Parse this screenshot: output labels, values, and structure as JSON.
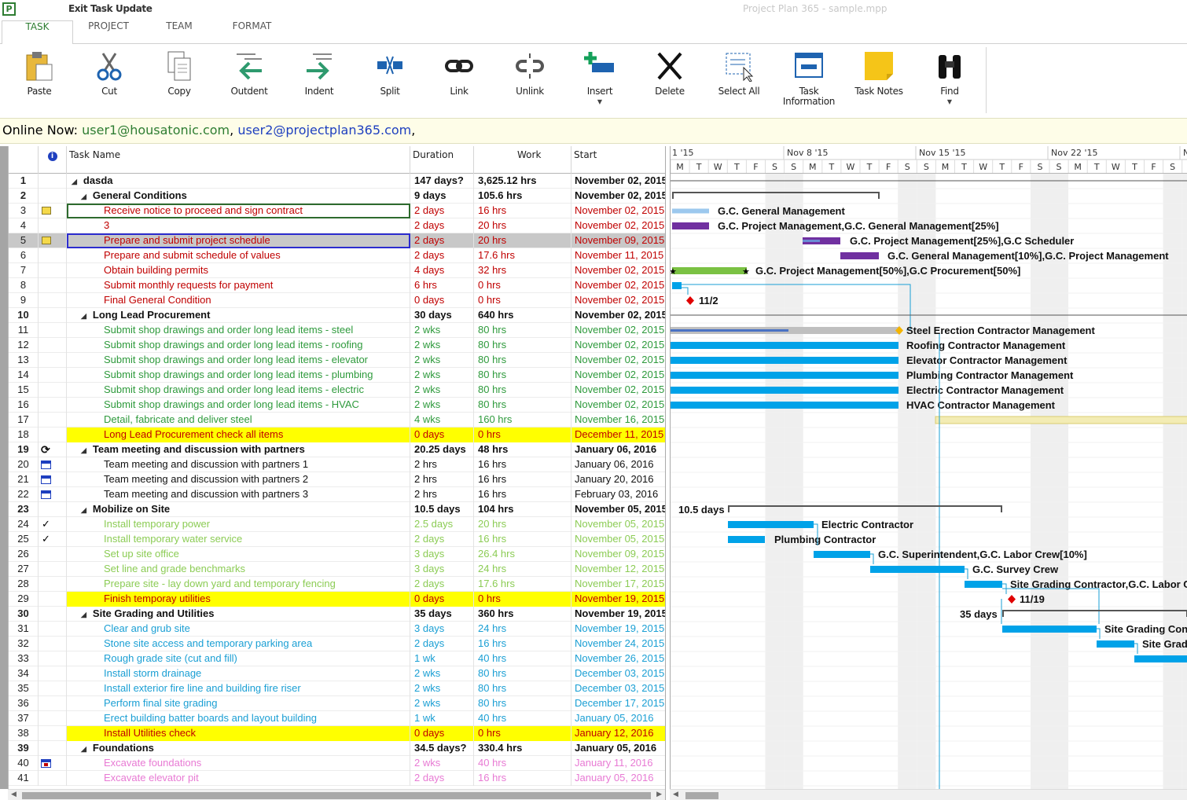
{
  "titlebar": {
    "exit_label": "Exit Task Update",
    "doc_title": "Project Plan 365 - sample.mpp",
    "app_icon": "P"
  },
  "tabs": [
    {
      "label": "TASK"
    },
    {
      "label": "PROJECT"
    },
    {
      "label": "TEAM"
    },
    {
      "label": "FORMAT"
    }
  ],
  "active_tab": "TASK",
  "ribbon": [
    {
      "label": "Paste",
      "icon": "paste-icon"
    },
    {
      "label": "Cut",
      "icon": "scissors-icon"
    },
    {
      "label": "Copy",
      "icon": "copy-icon"
    },
    {
      "label": "Outdent",
      "icon": "outdent-icon"
    },
    {
      "label": "Indent",
      "icon": "indent-icon"
    },
    {
      "label": "Split",
      "icon": "split-icon"
    },
    {
      "label": "Link",
      "icon": "link-icon"
    },
    {
      "label": "Unlink",
      "icon": "unlink-icon"
    },
    {
      "label": "Insert",
      "icon": "insert-icon",
      "dropdown": true
    },
    {
      "label": "Delete",
      "icon": "delete-icon"
    },
    {
      "label": "Select All",
      "icon": "select-all-icon"
    },
    {
      "label": "Task Information",
      "icon": "task-info-icon"
    },
    {
      "label": "Task Notes",
      "icon": "task-notes-icon"
    },
    {
      "label": "Find",
      "icon": "binoculars-icon",
      "dropdown": true
    }
  ],
  "online": {
    "prefix": "Online Now: ",
    "user1": "user1@housatonic.com",
    "sep": ", ",
    "user2": "user2@projectplan365.com",
    "suffix": ","
  },
  "grid": {
    "headers": {
      "info": "i",
      "name": "Task Name",
      "duration": "Duration",
      "work": "Work",
      "start": "Start"
    },
    "rows": [
      {
        "id": "1",
        "name": "dasda",
        "dur": "147 days?",
        "work": "3,625.12 hrs",
        "start": "November 02, 2015",
        "sum": true,
        "lvl": 0,
        "color": "#111"
      },
      {
        "id": "2",
        "name": "General Conditions",
        "dur": "9 days",
        "work": "105.6 hrs",
        "start": "November 02, 2015",
        "sum": true,
        "lvl": 1,
        "color": "#111"
      },
      {
        "id": "3",
        "name": "Receive notice to proceed and sign contract",
        "dur": "2 days",
        "work": "16 hrs",
        "start": "November 02, 2015",
        "lvl": 2,
        "color": "#c00000",
        "ind": "note",
        "sel3": true
      },
      {
        "id": "4",
        "name": "3",
        "dur": "2 days",
        "work": "20 hrs",
        "start": "November 02, 2015",
        "lvl": 2,
        "color": "#c00000"
      },
      {
        "id": "5",
        "name": "Prepare and submit project schedule",
        "dur": "2 days",
        "work": "20 hrs",
        "start": "November 09, 2015",
        "lvl": 2,
        "color": "#c00000",
        "ind": "note",
        "gray": true,
        "sel": true
      },
      {
        "id": "6",
        "name": "Prepare and submit schedule of values",
        "dur": "2 days",
        "work": "17.6 hrs",
        "start": "November 11, 2015",
        "lvl": 2,
        "color": "#c00000"
      },
      {
        "id": "7",
        "name": "Obtain building permits",
        "dur": "4 days",
        "work": "32 hrs",
        "start": "November 02, 2015",
        "lvl": 2,
        "color": "#c00000"
      },
      {
        "id": "8",
        "name": "Submit monthly requests for payment",
        "dur": "6 hrs",
        "work": "0 hrs",
        "start": "November 02, 2015",
        "lvl": 2,
        "color": "#c00000"
      },
      {
        "id": "9",
        "name": "Final General Condition",
        "dur": "0 days",
        "work": "0 hrs",
        "start": "November 02, 2015",
        "lvl": 2,
        "color": "#c00000"
      },
      {
        "id": "10",
        "name": "Long Lead Procurement",
        "dur": "30 days",
        "work": "640 hrs",
        "start": "November 02, 2015",
        "sum": true,
        "lvl": 1,
        "color": "#111"
      },
      {
        "id": "11",
        "name": "Submit shop drawings and order long lead items - steel",
        "dur": "2 wks",
        "work": "80 hrs",
        "start": "November 02, 2015",
        "lvl": 2,
        "color": "#2e9a3c"
      },
      {
        "id": "12",
        "name": "Submit shop drawings and order long lead items - roofing",
        "dur": "2 wks",
        "work": "80 hrs",
        "start": "November 02, 2015",
        "lvl": 2,
        "color": "#2e9a3c"
      },
      {
        "id": "13",
        "name": "Submit shop drawings and order long lead items - elevator",
        "dur": "2 wks",
        "work": "80 hrs",
        "start": "November 02, 2015",
        "lvl": 2,
        "color": "#2e9a3c"
      },
      {
        "id": "14",
        "name": "Submit shop drawings and order long lead items - plumbing",
        "dur": "2 wks",
        "work": "80 hrs",
        "start": "November 02, 2015",
        "lvl": 2,
        "color": "#2e9a3c"
      },
      {
        "id": "15",
        "name": "Submit shop drawings and order long lead items - electric",
        "dur": "2 wks",
        "work": "80 hrs",
        "start": "November 02, 2015",
        "lvl": 2,
        "color": "#2e9a3c"
      },
      {
        "id": "16",
        "name": "Submit shop drawings and order long lead items - HVAC",
        "dur": "2 wks",
        "work": "80 hrs",
        "start": "November 02, 2015",
        "lvl": 2,
        "color": "#2e9a3c"
      },
      {
        "id": "17",
        "name": "Detail, fabricate and deliver steel",
        "dur": "4 wks",
        "work": "160 hrs",
        "start": "November 16, 2015",
        "lvl": 2,
        "color": "#2e9a3c"
      },
      {
        "id": "18",
        "name": "Long Lead Procurement check all items",
        "dur": "0 days",
        "work": "0 hrs",
        "start": "December 11, 2015",
        "lvl": 2,
        "color": "#c00000",
        "yellow": true
      },
      {
        "id": "19",
        "name": "Team meeting and discussion with partners",
        "dur": "20.25 days",
        "work": "48 hrs",
        "start": "January 06, 2016",
        "sum": true,
        "lvl": 1,
        "color": "#111",
        "ind": "recur"
      },
      {
        "id": "20",
        "name": "Team meeting and discussion with partners 1",
        "dur": "2 hrs",
        "work": "16 hrs",
        "start": "January 06, 2016",
        "lvl": 2,
        "color": "#111",
        "ind": "cal"
      },
      {
        "id": "21",
        "name": "Team meeting and discussion with partners 2",
        "dur": "2 hrs",
        "work": "16 hrs",
        "start": "January 20, 2016",
        "lvl": 2,
        "color": "#111",
        "ind": "cal"
      },
      {
        "id": "22",
        "name": "Team meeting and discussion with partners 3",
        "dur": "2 hrs",
        "work": "16 hrs",
        "start": "February 03, 2016",
        "lvl": 2,
        "color": "#111",
        "ind": "cal"
      },
      {
        "id": "23",
        "name": "Mobilize on Site",
        "dur": "10.5 days",
        "work": "104 hrs",
        "start": "November 05, 2015",
        "sum": true,
        "lvl": 1,
        "color": "#111"
      },
      {
        "id": "24",
        "name": "Install temporary power",
        "dur": "2.5 days",
        "work": "20 hrs",
        "start": "November 05, 2015",
        "lvl": 2,
        "color": "#8ccc55",
        "ind": "check"
      },
      {
        "id": "25",
        "name": "Install temporary water service",
        "dur": "2 days",
        "work": "16 hrs",
        "start": "November 05, 2015",
        "lvl": 2,
        "color": "#8ccc55",
        "ind": "check"
      },
      {
        "id": "26",
        "name": "Set up site office",
        "dur": "3 days",
        "work": "26.4 hrs",
        "start": "November 09, 2015",
        "lvl": 2,
        "color": "#8ccc55"
      },
      {
        "id": "27",
        "name": "Set line and grade benchmarks",
        "dur": "3 days",
        "work": "24 hrs",
        "start": "November 12, 2015",
        "lvl": 2,
        "color": "#8ccc55"
      },
      {
        "id": "28",
        "name": "Prepare site - lay down yard and temporary fencing",
        "dur": "2 days",
        "work": "17.6 hrs",
        "start": "November 17, 2015",
        "lvl": 2,
        "color": "#8ccc55"
      },
      {
        "id": "29",
        "name": "Finish temporay utilities",
        "dur": "0 days",
        "work": "0 hrs",
        "start": "November 19, 2015",
        "lvl": 2,
        "color": "#c00000",
        "yellow": true
      },
      {
        "id": "30",
        "name": "Site Grading and Utilities",
        "dur": "35 days",
        "work": "360 hrs",
        "start": "November 19, 2015",
        "sum": true,
        "lvl": 1,
        "color": "#111"
      },
      {
        "id": "31",
        "name": "Clear and grub site",
        "dur": "3 days",
        "work": "24 hrs",
        "start": "November 19, 2015",
        "lvl": 2,
        "color": "#1a9fd4"
      },
      {
        "id": "32",
        "name": "Stone site access and temporary parking area",
        "dur": "2 days",
        "work": "16 hrs",
        "start": "November 24, 2015",
        "lvl": 2,
        "color": "#1a9fd4"
      },
      {
        "id": "33",
        "name": "Rough grade site (cut and fill)",
        "dur": "1 wk",
        "work": "40 hrs",
        "start": "November 26, 2015",
        "lvl": 2,
        "color": "#1a9fd4"
      },
      {
        "id": "34",
        "name": "Install storm drainage",
        "dur": "2 wks",
        "work": "80 hrs",
        "start": "December 03, 2015",
        "lvl": 2,
        "color": "#1a9fd4"
      },
      {
        "id": "35",
        "name": "Install exterior fire line and building fire riser",
        "dur": "2 wks",
        "work": "80 hrs",
        "start": "December 03, 2015",
        "lvl": 2,
        "color": "#1a9fd4"
      },
      {
        "id": "36",
        "name": "Perform final site grading",
        "dur": "2 wks",
        "work": "80 hrs",
        "start": "December 17, 2015",
        "lvl": 2,
        "color": "#1a9fd4"
      },
      {
        "id": "37",
        "name": "Erect building batter boards and layout building",
        "dur": "1 wk",
        "work": "40 hrs",
        "start": "January 05, 2016",
        "lvl": 2,
        "color": "#1a9fd4"
      },
      {
        "id": "38",
        "name": "Install Utilities check",
        "dur": "0 days",
        "work": "0 hrs",
        "start": "January 12, 2016",
        "lvl": 2,
        "color": "#c00000",
        "yellow": true
      },
      {
        "id": "39",
        "name": "Foundations",
        "dur": "34.5 days?",
        "work": "330.4 hrs",
        "start": "January 05, 2016",
        "sum": true,
        "lvl": 1,
        "color": "#111"
      },
      {
        "id": "40",
        "name": "Excavate foundations",
        "dur": "2 wks",
        "work": "40 hrs",
        "start": "January 11, 2016",
        "lvl": 2,
        "color": "#e87ad4",
        "ind": "calred"
      },
      {
        "id": "41",
        "name": "Excavate elevator pit",
        "dur": "2 days",
        "work": "16 hrs",
        "start": "January 05, 2016",
        "lvl": 2,
        "color": "#e87ad4"
      }
    ]
  },
  "gantt": {
    "weeks": [
      "1 '15",
      "Nov 8 '15",
      "Nov 15 '15",
      "Nov 22 '15",
      "N"
    ],
    "days": [
      "M",
      "T",
      "W",
      "T",
      "F",
      "S",
      "S",
      "M",
      "T",
      "W",
      "T",
      "F",
      "S",
      "S",
      "M",
      "T",
      "W",
      "T",
      "F",
      "S",
      "S",
      "M",
      "T",
      "W",
      "T",
      "F",
      "S",
      "S"
    ],
    "labels": [
      {
        "row": 3,
        "text": "G.C. General Management"
      },
      {
        "row": 4,
        "text": "G.C. Project Management,G.C. General Management[25%]"
      },
      {
        "row": 5,
        "text": "G.C. Project Management[25%],G.C Scheduler"
      },
      {
        "row": 6,
        "text": "G.C. General Management[10%],G.C. Project Management"
      },
      {
        "row": 7,
        "text": "G.C. Project Management[50%],G.C Procurement[50%]"
      },
      {
        "row": 9,
        "text": "11/2"
      },
      {
        "row": 11,
        "text": "Steel Erection Contractor Management"
      },
      {
        "row": 12,
        "text": "Roofing Contractor Management"
      },
      {
        "row": 13,
        "text": "Elevator Contractor Management"
      },
      {
        "row": 14,
        "text": "Plumbing Contractor Management"
      },
      {
        "row": 15,
        "text": "Electric Contractor Management"
      },
      {
        "row": 16,
        "text": "HVAC Contractor Management"
      },
      {
        "row": 23,
        "text": "10.5 days"
      },
      {
        "row": 24,
        "text": "Electric Contractor"
      },
      {
        "row": 25,
        "text": "Plumbing Contractor"
      },
      {
        "row": 26,
        "text": "G.C. Superintendent,G.C. Labor Crew[10%]"
      },
      {
        "row": 27,
        "text": "G.C. Survey Crew"
      },
      {
        "row": 28,
        "text": "Site Grading Contractor,G.C. Labor C"
      },
      {
        "row": 29,
        "text": "11/19"
      },
      {
        "row": 30,
        "text": "35 days"
      },
      {
        "row": 31,
        "text": "Site Grading Con"
      },
      {
        "row": 32,
        "text": "Site Grad"
      }
    ],
    "colors": {
      "blue": "#00a2e8",
      "purple": "#7030a0",
      "green": "#7ac143",
      "gray": "#bfbfbf",
      "red": "#e00000",
      "orange": "#f4b400",
      "weekend": "#efefef",
      "link": "#1a9fd4"
    }
  }
}
